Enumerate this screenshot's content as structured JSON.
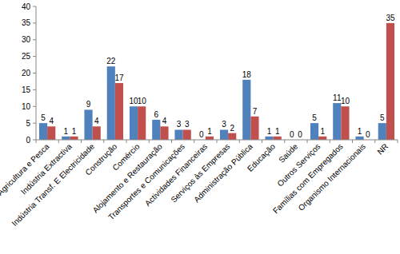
{
  "chart_data": {
    "type": "bar",
    "categories": [
      "Agricultura e Pesca",
      "Indústria Extractiva",
      "Indústria Transf. E Electricidade",
      "Construção",
      "Comércio",
      "Alojamento e Restauração",
      "Transportes e Comunicações",
      "Actividades Financeiras",
      "Serviços às Empresas",
      "Administração Pública",
      "Educação",
      "Saúde",
      "Outros Serviços",
      "Famílias com Empregados",
      "Organismo Internacionais",
      "NR"
    ],
    "series": [
      {
        "color": "#4f81bd",
        "values": [
          5,
          1,
          9,
          22,
          10,
          6,
          3,
          0,
          3,
          18,
          1,
          0,
          5,
          11,
          1,
          5
        ]
      },
      {
        "color": "#c0504d",
        "values": [
          4,
          1,
          4,
          17,
          10,
          4,
          3,
          1,
          2,
          7,
          1,
          0,
          1,
          10,
          0,
          35
        ]
      }
    ],
    "ylim": [
      0,
      40
    ],
    "yticks": [
      0,
      5,
      10,
      15,
      20,
      25,
      30,
      35,
      40
    ],
    "grid": false,
    "data_labels": true
  }
}
